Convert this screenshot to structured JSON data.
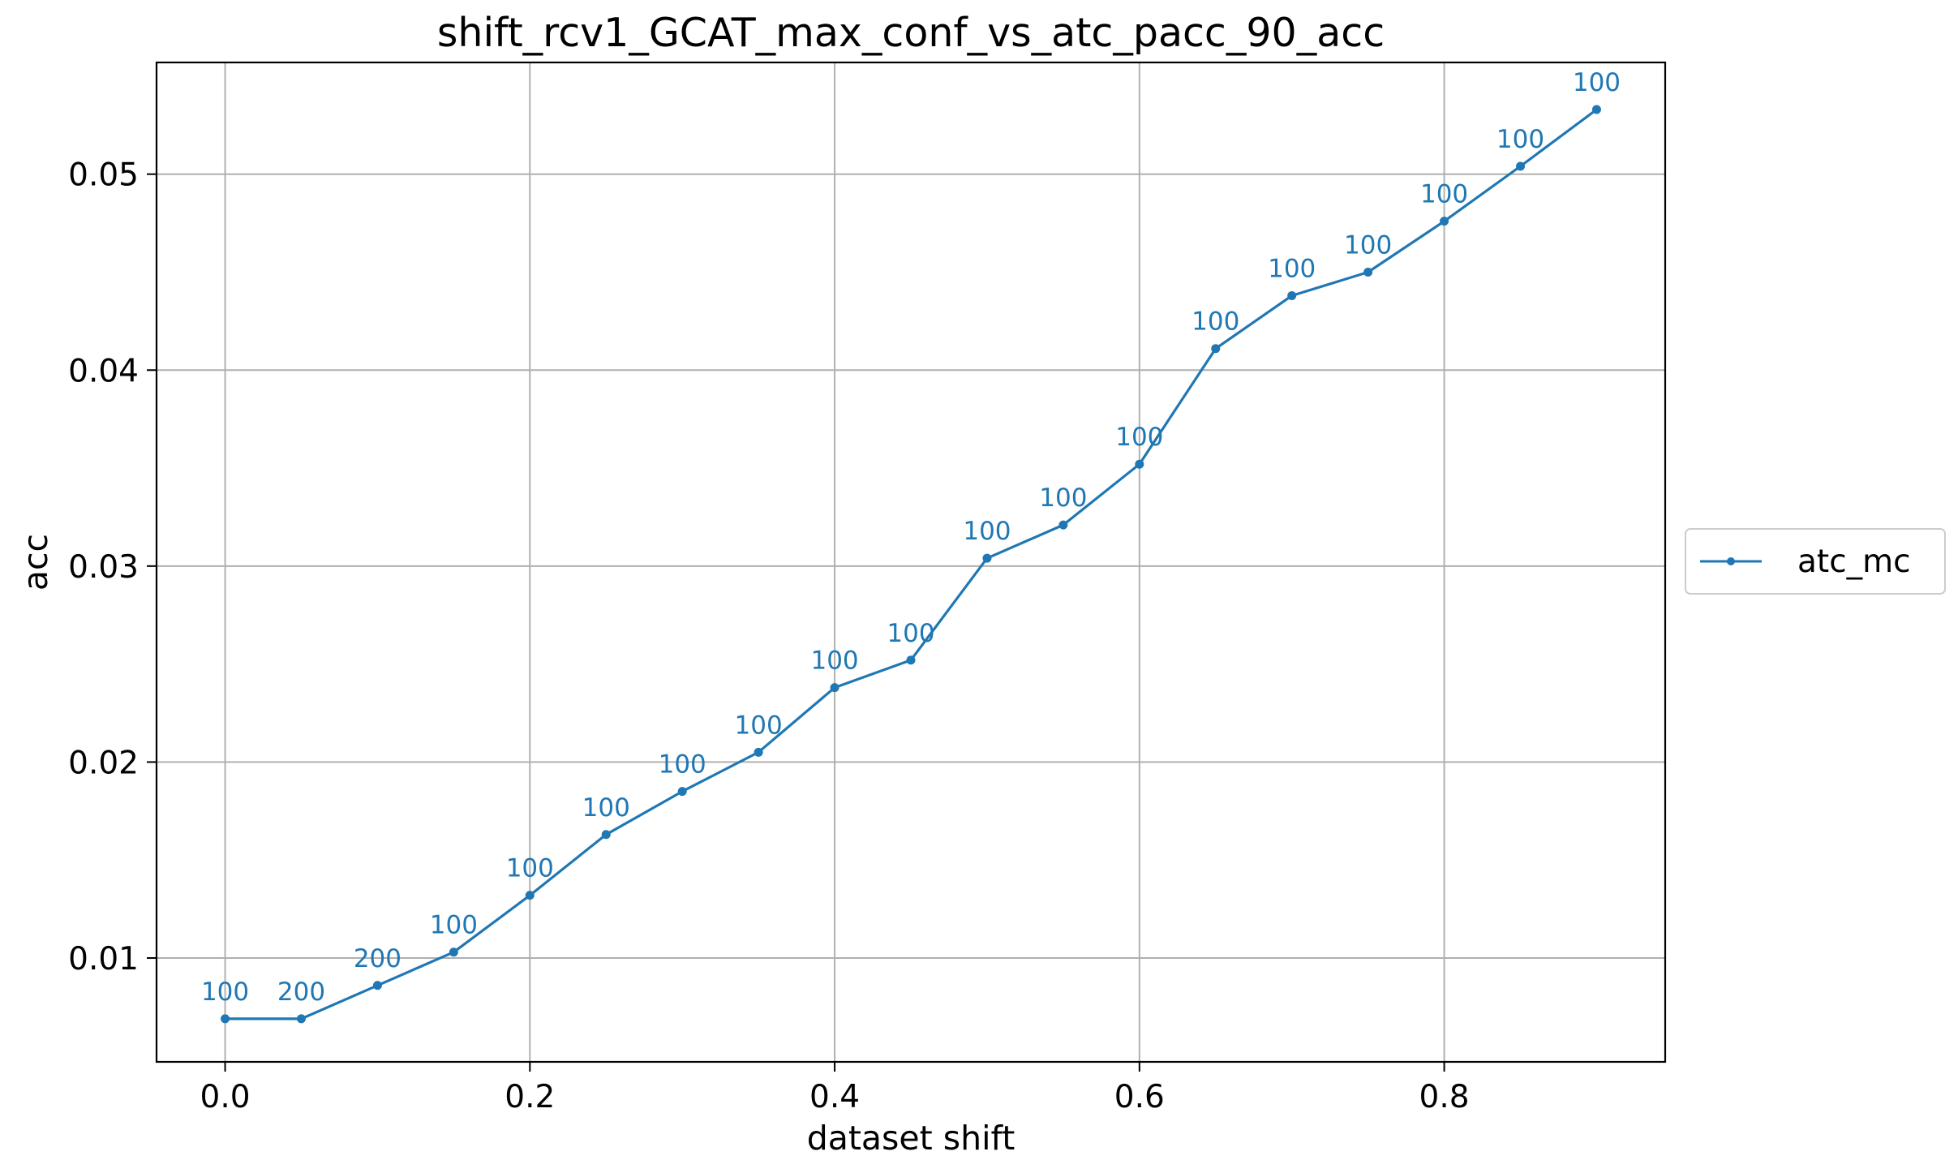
{
  "colors": {
    "series": "#1f77b4",
    "grid": "#b0b0b0",
    "axis": "#000000",
    "background": "#ffffff"
  },
  "chart_data": {
    "type": "line",
    "title": "shift_rcv1_GCAT_max_conf_vs_atc_pacc_90_acc",
    "xlabel": "dataset shift",
    "ylabel": "acc",
    "xlim": [
      -0.045,
      0.945
    ],
    "ylim": [
      0.0047,
      0.0557
    ],
    "xticks": [
      0.0,
      0.2,
      0.4,
      0.6,
      0.8
    ],
    "xtick_labels": [
      "0.0",
      "0.2",
      "0.4",
      "0.6",
      "0.8"
    ],
    "yticks": [
      0.01,
      0.02,
      0.03,
      0.04,
      0.05
    ],
    "ytick_labels": [
      "0.01",
      "0.02",
      "0.03",
      "0.04",
      "0.05"
    ],
    "grid": true,
    "legend": {
      "placement": "right, outside plot area",
      "entries": [
        "atc_mc"
      ]
    },
    "series": [
      {
        "name": "atc_mc",
        "color": "#1f77b4",
        "marker": "dot",
        "x": [
          0.0,
          0.05,
          0.1,
          0.15,
          0.2,
          0.25,
          0.3,
          0.35,
          0.4,
          0.45,
          0.5,
          0.55,
          0.6,
          0.65,
          0.7,
          0.75,
          0.8,
          0.85,
          0.9
        ],
        "y": [
          0.0069,
          0.0069,
          0.0086,
          0.0103,
          0.0132,
          0.0163,
          0.0185,
          0.0205,
          0.0238,
          0.0252,
          0.0304,
          0.0321,
          0.0352,
          0.0411,
          0.0438,
          0.045,
          0.0476,
          0.0504,
          0.0533
        ],
        "point_labels": [
          "100",
          "200",
          "200",
          "100",
          "100",
          "100",
          "100",
          "100",
          "100",
          "100",
          "100",
          "100",
          "100",
          "100",
          "100",
          "100",
          "100",
          "100",
          "100"
        ]
      }
    ]
  }
}
